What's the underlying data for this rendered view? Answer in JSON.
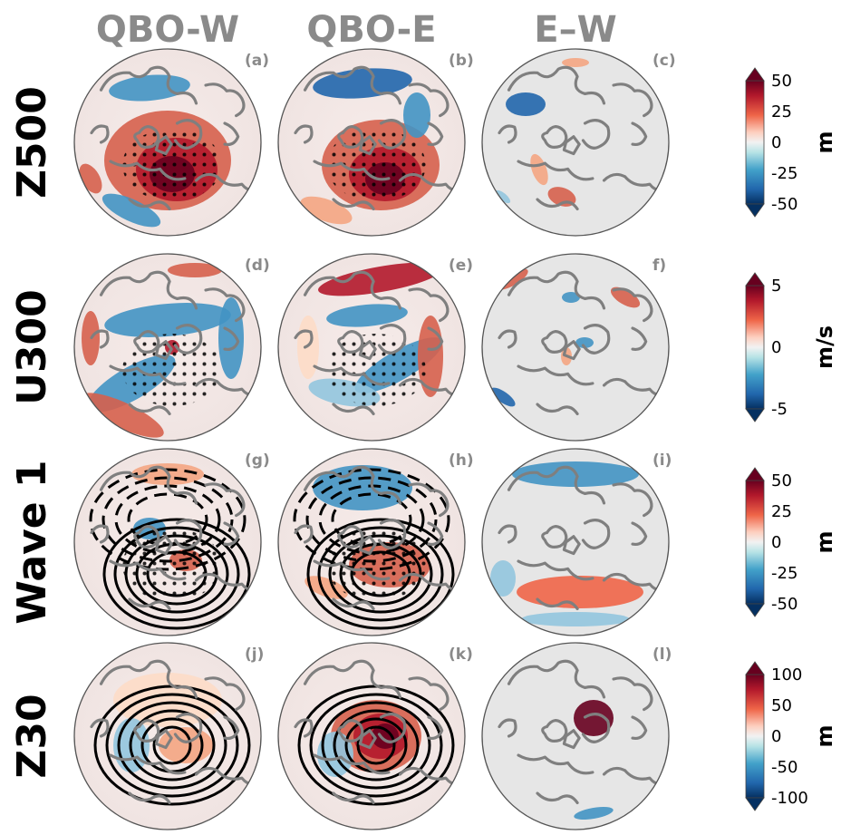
{
  "columns": [
    "QBO-W",
    "QBO-E",
    "E–W"
  ],
  "rows": [
    {
      "label": "Z500",
      "panels": [
        "(a)",
        "(b)",
        "(c)"
      ],
      "colorbar": {
        "ticks": [
          "50",
          "25",
          "0",
          "-25",
          "-50"
        ],
        "unit": "m"
      }
    },
    {
      "label": "U300",
      "panels": [
        "(d)",
        "(e)",
        "f)"
      ],
      "colorbar": {
        "ticks": [
          "5",
          "0",
          "-5"
        ],
        "unit": "m/s"
      }
    },
    {
      "label": "Wave 1",
      "panels": [
        "(g)",
        "(h)",
        "(i)"
      ],
      "colorbar": {
        "ticks": [
          "50",
          "25",
          "0",
          "-25",
          "-50"
        ],
        "unit": "m"
      }
    },
    {
      "label": "Z30",
      "panels": [
        "(j)",
        "(k)",
        "(l)"
      ],
      "colorbar": {
        "ticks": [
          "100",
          "50",
          "0",
          "-50",
          "-100"
        ],
        "unit": "m"
      }
    }
  ],
  "colors": {
    "title_gray": "#8a8a8a",
    "red_max": "#67001f",
    "red": "#d6604d",
    "blue": "#4393c3",
    "blue_max": "#053061",
    "neutral": "#e6e6e6",
    "coast": "#7f7f7f"
  }
}
